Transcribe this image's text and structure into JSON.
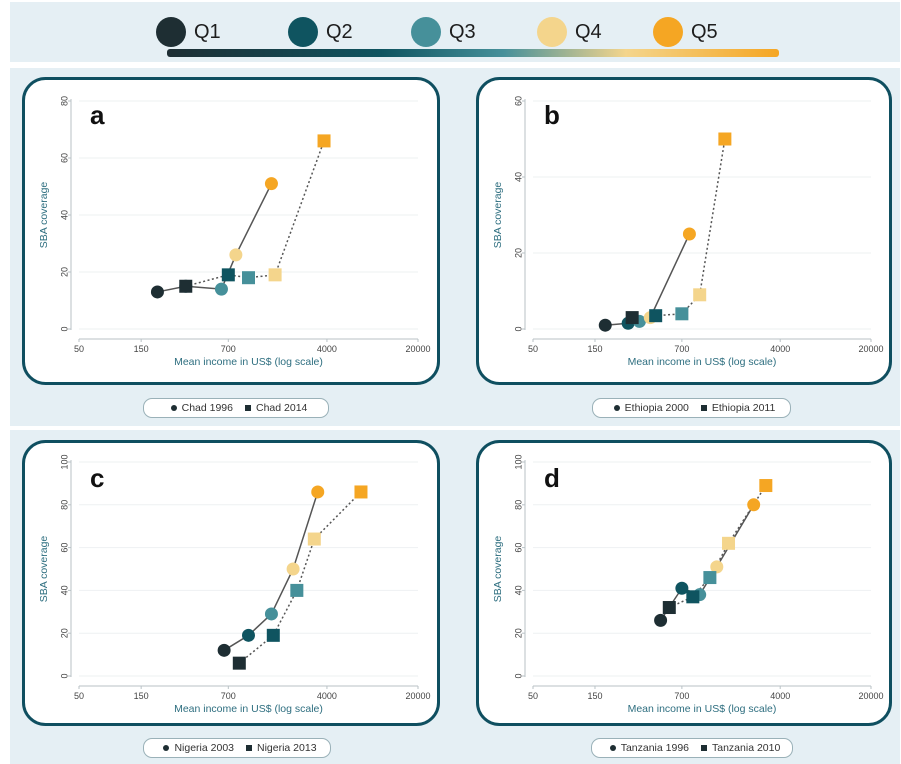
{
  "legend": {
    "items": [
      {
        "label": "Q1",
        "color": "#1e2e33"
      },
      {
        "label": "Q2",
        "color": "#0f5460"
      },
      {
        "label": "Q3",
        "color": "#46909a"
      },
      {
        "label": "Q4",
        "color": "#f4d58c"
      },
      {
        "label": "Q5",
        "color": "#f5a623"
      }
    ]
  },
  "chart_data": [
    {
      "type": "scatter",
      "panel": "a",
      "xlabel": "Mean income in US$ (log scale)",
      "ylabel": "SBA coverage",
      "x_scale": "log",
      "xticks": [
        50,
        150,
        700,
        4000,
        20000
      ],
      "ylim": [
        0,
        80
      ],
      "yticks": [
        0,
        20,
        40,
        60,
        80
      ],
      "series": [
        {
          "name": "Chad 1996",
          "marker": "circle",
          "line": "solid",
          "x": [
            200,
            330,
            620,
            800,
            1500
          ],
          "y": [
            13,
            15,
            14,
            26,
            51
          ]
        },
        {
          "name": "Chad 2014",
          "marker": "square",
          "line": "dotted",
          "x": [
            330,
            700,
            1000,
            1600,
            3800
          ],
          "y": [
            15,
            19,
            18,
            19,
            66
          ]
        }
      ]
    },
    {
      "type": "scatter",
      "panel": "b",
      "xlabel": "Mean income in US$ (log scale)",
      "ylabel": "SBA coverage",
      "x_scale": "log",
      "xticks": [
        50,
        150,
        700,
        4000,
        20000
      ],
      "ylim": [
        0,
        60
      ],
      "yticks": [
        0,
        20,
        40,
        60
      ],
      "series": [
        {
          "name": "Ethiopia 2000",
          "marker": "circle",
          "line": "solid",
          "x": [
            180,
            270,
            330,
            400,
            800
          ],
          "y": [
            1,
            1.5,
            2,
            3,
            25
          ]
        },
        {
          "name": "Ethiopia 2011",
          "marker": "square",
          "line": "dotted",
          "x": [
            290,
            440,
            700,
            960,
            1500
          ],
          "y": [
            3,
            3.5,
            4,
            9,
            50
          ]
        }
      ]
    },
    {
      "type": "scatter",
      "panel": "c",
      "xlabel": "Mean income in US$ (log scale)",
      "ylabel": "SBA coverage",
      "x_scale": "log",
      "xticks": [
        50,
        150,
        700,
        4000,
        20000
      ],
      "ylim": [
        0,
        100
      ],
      "yticks": [
        0,
        20,
        40,
        60,
        80,
        100
      ],
      "series": [
        {
          "name": "Nigeria 2003",
          "marker": "circle",
          "line": "solid",
          "x": [
            650,
            1000,
            1500,
            2200,
            3400
          ],
          "y": [
            12,
            19,
            29,
            50,
            86
          ]
        },
        {
          "name": "Nigeria 2013",
          "marker": "square",
          "line": "dotted",
          "x": [
            850,
            1550,
            2350,
            3200,
            7300
          ],
          "y": [
            6,
            19,
            40,
            64,
            86
          ]
        }
      ]
    },
    {
      "type": "scatter",
      "panel": "d",
      "xlabel": "Mean income in US$ (log scale)",
      "ylabel": "SBA coverage",
      "x_scale": "log",
      "xticks": [
        50,
        150,
        700,
        4000,
        20000
      ],
      "ylim": [
        0,
        100
      ],
      "yticks": [
        0,
        20,
        40,
        60,
        80,
        100
      ],
      "series": [
        {
          "name": "Tanzania 1996",
          "marker": "circle",
          "line": "solid",
          "x": [
            480,
            700,
            960,
            1300,
            2500
          ],
          "y": [
            26,
            41,
            38,
            51,
            80
          ]
        },
        {
          "name": "Tanzania 2010",
          "marker": "square",
          "line": "dotted",
          "x": [
            560,
            850,
            1150,
            1600,
            3100
          ],
          "y": [
            32,
            37,
            46,
            62,
            89
          ]
        }
      ]
    }
  ]
}
